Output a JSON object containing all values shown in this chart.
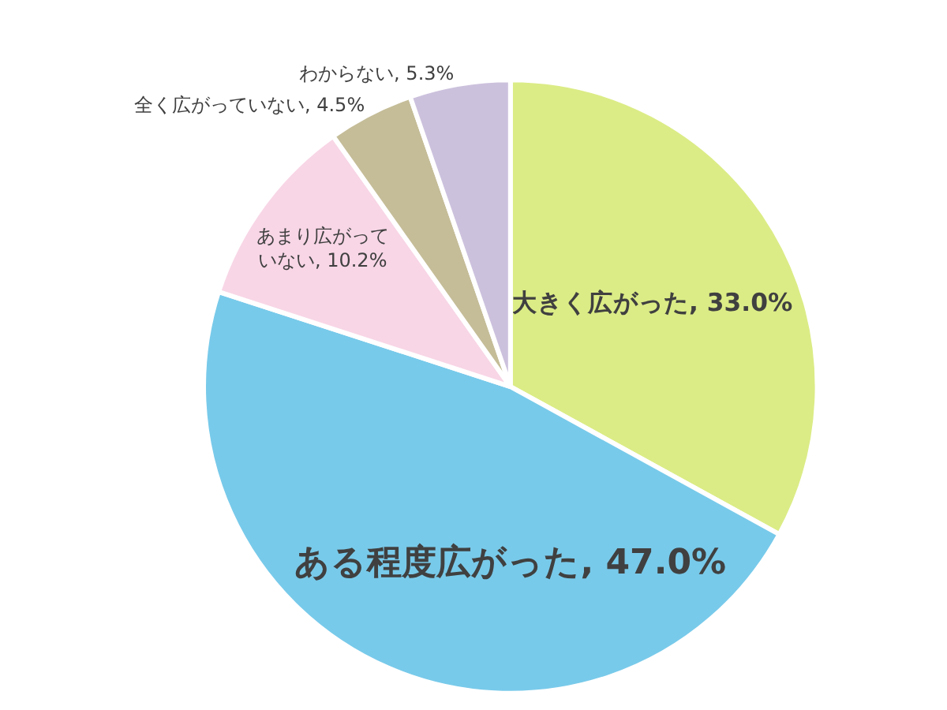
{
  "chart_data": {
    "type": "pie",
    "categories": [
      "大きく広がった",
      "ある程度広がった",
      "あまり広がっていない",
      "全く広がっていない",
      "わからない"
    ],
    "values": [
      33.0,
      47.0,
      10.2,
      4.5,
      5.3
    ],
    "colors": [
      "#dbec86",
      "#78caea",
      "#f8d6e6",
      "#c5bd98",
      "#ccc1dd"
    ],
    "value_labels": [
      "33.0%",
      "47.0%",
      "10.2%",
      "4.5%",
      "5.3%"
    ]
  }
}
